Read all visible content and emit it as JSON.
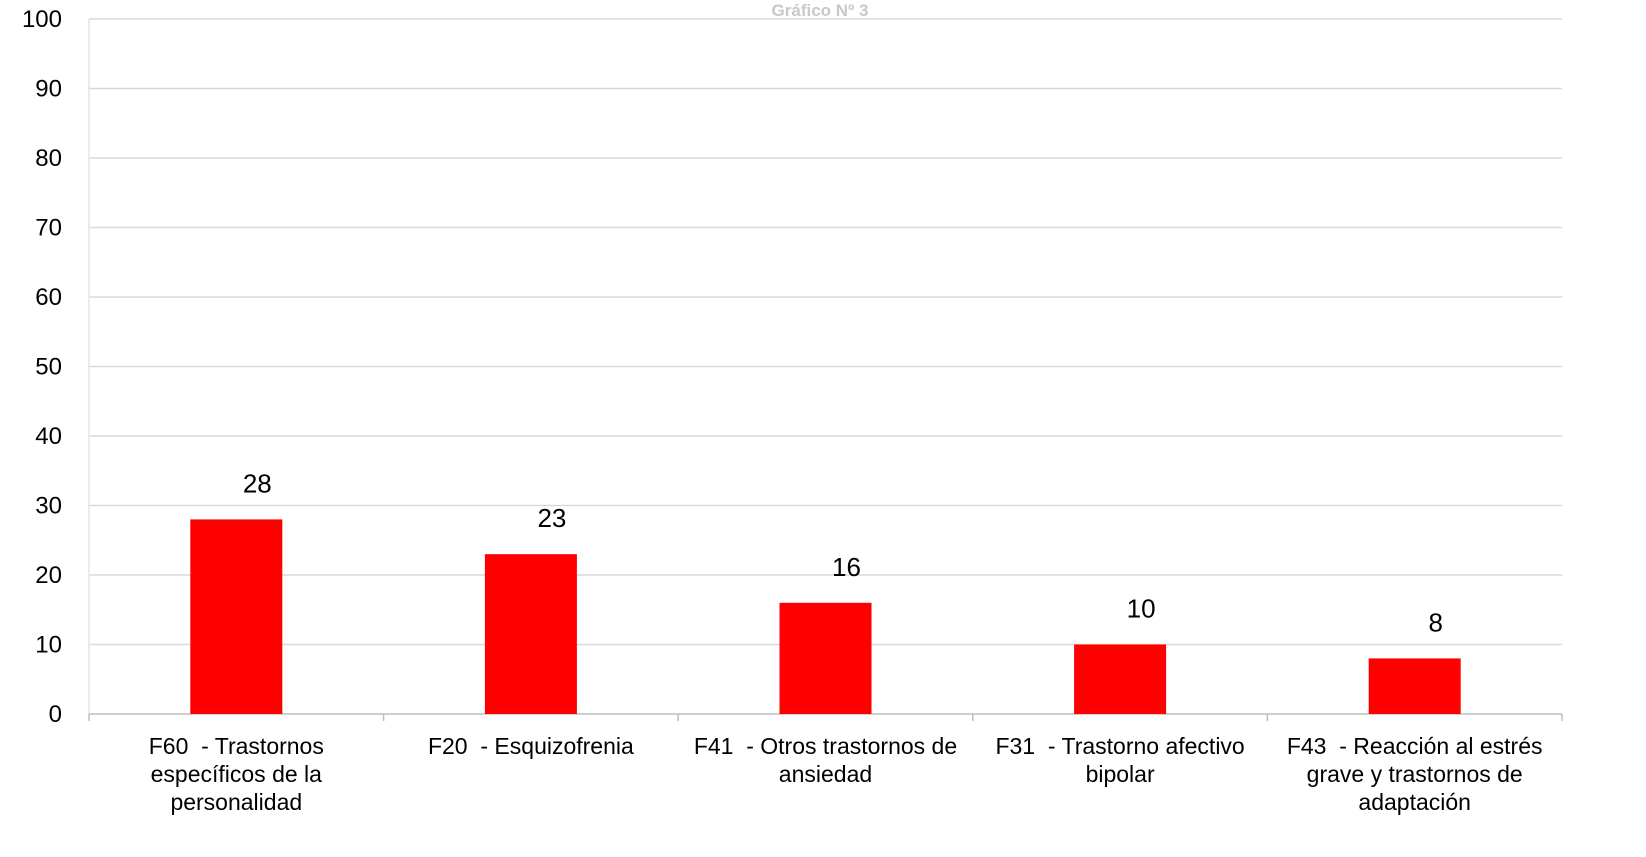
{
  "chart_data": {
    "type": "bar",
    "title": "Gráfico Nº 3",
    "categories": [
      "F60  - Trastornos específicos de la personalidad",
      "F20  - Esquizofrenia",
      "F41  - Otros trastornos de ansiedad",
      "F31  - Trastorno afectivo bipolar",
      "F43  - Reacción al estrés grave y trastornos de adaptación"
    ],
    "values": [
      28,
      23,
      16,
      10,
      8
    ],
    "color": "#ff0000",
    "ylim": [
      0,
      100
    ],
    "yticks": [
      0,
      10,
      20,
      30,
      40,
      50,
      60,
      70,
      80,
      90,
      100
    ],
    "grid": true
  }
}
